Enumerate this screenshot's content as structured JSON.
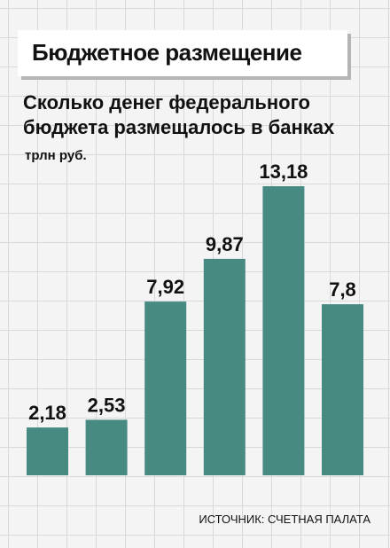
{
  "header": {
    "title": "Бюджетное размещение",
    "subtitle": "Сколько денег федерального бюджета размещалось в банках",
    "unit": "трлн руб.",
    "source": "ИСТОЧНИК: СЧЕТНАЯ ПАЛАТА"
  },
  "colors": {
    "bar": "#468a82",
    "text": "#111111"
  },
  "chart_data": {
    "type": "bar",
    "categories": [
      "",
      "",
      "",
      "",
      "",
      ""
    ],
    "values": [
      2.18,
      2.53,
      7.92,
      9.87,
      13.18,
      7.8
    ],
    "labels": [
      "2,18",
      "2,53",
      "7,92",
      "9,87",
      "13,18",
      "7,8"
    ],
    "ylim": [
      0,
      13.18
    ],
    "title": "Бюджетное размещение",
    "subtitle": "Сколько денег федерального бюджета размещалось в банках",
    "ylabel": "трлн руб.",
    "grid": true
  }
}
